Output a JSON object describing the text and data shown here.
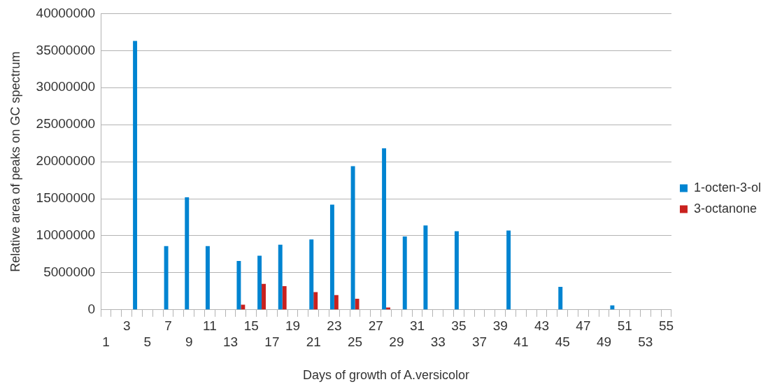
{
  "chart_data": {
    "type": "bar",
    "xlabel": "Days of growth of A.versicolor",
    "ylabel": "Relative area of peaks on GC spectrum",
    "categories": [
      "1",
      null,
      "3",
      null,
      "5",
      null,
      "7",
      null,
      "9",
      null,
      "11",
      null,
      "13",
      null,
      "15",
      null,
      "17",
      null,
      "19",
      null,
      "21",
      null,
      "23",
      null,
      "25",
      null,
      "27",
      null,
      "29",
      null,
      "31",
      null,
      "33",
      null,
      "35",
      null,
      "37",
      null,
      "39",
      null,
      "41",
      null,
      "43",
      null,
      "45",
      null,
      "47",
      null,
      "49",
      null,
      "51",
      null,
      "53",
      null,
      "55"
    ],
    "series": [
      {
        "name": "1-octen-3-ol",
        "color": "#0084d1",
        "values": [
          null,
          null,
          null,
          36300000,
          null,
          null,
          8600000,
          null,
          15200000,
          null,
          8600000,
          null,
          null,
          6600000,
          null,
          7300000,
          null,
          8800000,
          null,
          null,
          9500000,
          null,
          14200000,
          null,
          19400000,
          null,
          null,
          21800000,
          null,
          9900000,
          null,
          11400000,
          null,
          null,
          10600000,
          null,
          null,
          null,
          null,
          10700000,
          null,
          null,
          null,
          null,
          3100000,
          null,
          null,
          null,
          null,
          600000,
          null,
          null,
          null,
          null,
          null
        ]
      },
      {
        "name": "3-octanone",
        "color": "#c9211e",
        "values": [
          null,
          null,
          null,
          null,
          null,
          null,
          null,
          null,
          null,
          null,
          null,
          null,
          null,
          700000,
          null,
          3500000,
          null,
          3200000,
          null,
          null,
          2400000,
          null,
          2000000,
          null,
          1500000,
          null,
          null,
          300000,
          null,
          null,
          null,
          null,
          null,
          null,
          null,
          null,
          null,
          null,
          null,
          null,
          null,
          null,
          null,
          null,
          null,
          null,
          null,
          null,
          null,
          null,
          null,
          null,
          null,
          null,
          null
        ]
      }
    ],
    "ylim": [
      0,
      40000000
    ],
    "yticks": [
      0,
      5000000,
      10000000,
      15000000,
      20000000,
      25000000,
      30000000,
      35000000,
      40000000
    ],
    "grid": "y",
    "legend": "right"
  }
}
